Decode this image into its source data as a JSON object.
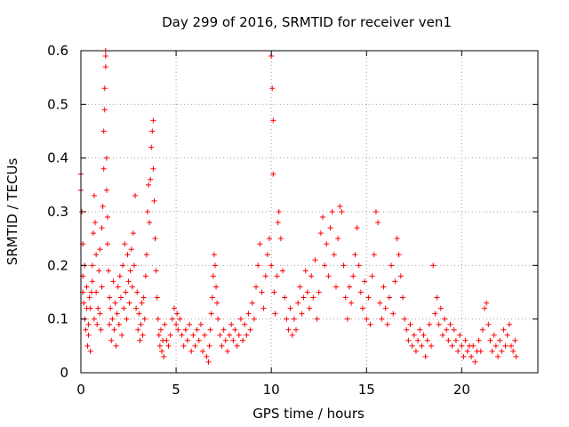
{
  "chart_data": {
    "type": "scatter",
    "title": "Day 299 of 2016, SRMTID for receiver ven1",
    "xlabel": "GPS time / hours",
    "ylabel": "SRMTID / TECUs",
    "xlim": [
      0,
      24
    ],
    "ylim": [
      0,
      0.6
    ],
    "xticks": [
      0,
      5,
      10,
      15,
      20
    ],
    "xtick_labels": [
      "0",
      "5",
      "10",
      "15",
      "20"
    ],
    "yticks": [
      0,
      0.1,
      0.2,
      0.3,
      0.4,
      0.5,
      0.6
    ],
    "ytick_labels": [
      "0",
      "0.1",
      "0.2",
      "0.3",
      "0.4",
      "0.5",
      "0.6"
    ],
    "grid": true,
    "marker": "+",
    "color": "#ff0000",
    "series": [
      {
        "name": "ven1",
        "points": [
          [
            0.0,
            0.34
          ],
          [
            0.0,
            0.37
          ],
          [
            0.05,
            0.3
          ],
          [
            0.1,
            0.24
          ],
          [
            0.1,
            0.18
          ],
          [
            0.1,
            0.15
          ],
          [
            0.15,
            0.13
          ],
          [
            0.2,
            0.2
          ],
          [
            0.2,
            0.1
          ],
          [
            0.25,
            0.08
          ],
          [
            0.3,
            0.16
          ],
          [
            0.3,
            0.12
          ],
          [
            0.35,
            0.05
          ],
          [
            0.4,
            0.09
          ],
          [
            0.4,
            0.07
          ],
          [
            0.45,
            0.14
          ],
          [
            0.5,
            0.12
          ],
          [
            0.5,
            0.04
          ],
          [
            0.55,
            0.15
          ],
          [
            0.6,
            0.17
          ],
          [
            0.6,
            0.2
          ],
          [
            0.65,
            0.26
          ],
          [
            0.7,
            0.33
          ],
          [
            0.7,
            0.1
          ],
          [
            0.75,
            0.28
          ],
          [
            0.8,
            0.22
          ],
          [
            0.8,
            0.15
          ],
          [
            0.85,
            0.09
          ],
          [
            0.9,
            0.12
          ],
          [
            0.95,
            0.19
          ],
          [
            1.0,
            0.11
          ],
          [
            1.0,
            0.23
          ],
          [
            1.05,
            0.08
          ],
          [
            1.1,
            0.16
          ],
          [
            1.1,
            0.27
          ],
          [
            1.15,
            0.31
          ],
          [
            1.2,
            0.38
          ],
          [
            1.2,
            0.45
          ],
          [
            1.25,
            0.49
          ],
          [
            1.25,
            0.53
          ],
          [
            1.3,
            0.57
          ],
          [
            1.3,
            0.6
          ],
          [
            1.3,
            0.59
          ],
          [
            1.35,
            0.4
          ],
          [
            1.35,
            0.34
          ],
          [
            1.4,
            0.29
          ],
          [
            1.4,
            0.24
          ],
          [
            1.45,
            0.19
          ],
          [
            1.5,
            0.14
          ],
          [
            1.5,
            0.09
          ],
          [
            1.55,
            0.12
          ],
          [
            1.6,
            0.06
          ],
          [
            1.65,
            0.1
          ],
          [
            1.7,
            0.17
          ],
          [
            1.75,
            0.08
          ],
          [
            1.8,
            0.13
          ],
          [
            1.85,
            0.05
          ],
          [
            1.9,
            0.11
          ],
          [
            1.95,
            0.16
          ],
          [
            2.0,
            0.09
          ],
          [
            2.05,
            0.18
          ],
          [
            2.1,
            0.14
          ],
          [
            2.15,
            0.07
          ],
          [
            2.2,
            0.2
          ],
          [
            2.25,
            0.12
          ],
          [
            2.3,
            0.24
          ],
          [
            2.35,
            0.15
          ],
          [
            2.4,
            0.1
          ],
          [
            2.45,
            0.22
          ],
          [
            2.5,
            0.17
          ],
          [
            2.55,
            0.13
          ],
          [
            2.6,
            0.19
          ],
          [
            2.65,
            0.23
          ],
          [
            2.7,
            0.16
          ],
          [
            2.75,
            0.26
          ],
          [
            2.8,
            0.2
          ],
          [
            2.85,
            0.33
          ],
          [
            2.9,
            0.12
          ],
          [
            2.95,
            0.15
          ],
          [
            3.0,
            0.08
          ],
          [
            3.05,
            0.11
          ],
          [
            3.1,
            0.06
          ],
          [
            3.15,
            0.09
          ],
          [
            3.2,
            0.13
          ],
          [
            3.25,
            0.07
          ],
          [
            3.3,
            0.14
          ],
          [
            3.35,
            0.1
          ],
          [
            3.4,
            0.18
          ],
          [
            3.45,
            0.22
          ],
          [
            3.5,
            0.3
          ],
          [
            3.55,
            0.35
          ],
          [
            3.6,
            0.28
          ],
          [
            3.65,
            0.36
          ],
          [
            3.7,
            0.42
          ],
          [
            3.75,
            0.45
          ],
          [
            3.8,
            0.47
          ],
          [
            3.8,
            0.38
          ],
          [
            3.85,
            0.32
          ],
          [
            3.9,
            0.25
          ],
          [
            3.95,
            0.19
          ],
          [
            4.0,
            0.14
          ],
          [
            4.05,
            0.1
          ],
          [
            4.1,
            0.07
          ],
          [
            4.15,
            0.05
          ],
          [
            4.2,
            0.08
          ],
          [
            4.25,
            0.04
          ],
          [
            4.3,
            0.06
          ],
          [
            4.35,
            0.03
          ],
          [
            4.4,
            0.09
          ],
          [
            4.5,
            0.06
          ],
          [
            4.6,
            0.05
          ],
          [
            4.7,
            0.07
          ],
          [
            4.8,
            0.1
          ],
          [
            4.9,
            0.12
          ],
          [
            5.0,
            0.09
          ],
          [
            5.05,
            0.11
          ],
          [
            5.1,
            0.08
          ],
          [
            5.2,
            0.1
          ],
          [
            5.3,
            0.07
          ],
          [
            5.4,
            0.05
          ],
          [
            5.5,
            0.08
          ],
          [
            5.6,
            0.06
          ],
          [
            5.7,
            0.09
          ],
          [
            5.8,
            0.04
          ],
          [
            5.9,
            0.07
          ],
          [
            6.0,
            0.05
          ],
          [
            6.1,
            0.08
          ],
          [
            6.2,
            0.06
          ],
          [
            6.3,
            0.09
          ],
          [
            6.4,
            0.04
          ],
          [
            6.5,
            0.07
          ],
          [
            6.6,
            0.03
          ],
          [
            6.7,
            0.02
          ],
          [
            6.75,
            0.05
          ],
          [
            6.8,
            0.08
          ],
          [
            6.85,
            0.11
          ],
          [
            6.9,
            0.14
          ],
          [
            6.95,
            0.18
          ],
          [
            7.0,
            0.22
          ],
          [
            7.05,
            0.2
          ],
          [
            7.1,
            0.16
          ],
          [
            7.15,
            0.13
          ],
          [
            7.2,
            0.1
          ],
          [
            7.3,
            0.07
          ],
          [
            7.4,
            0.05
          ],
          [
            7.5,
            0.08
          ],
          [
            7.6,
            0.06
          ],
          [
            7.7,
            0.04
          ],
          [
            7.8,
            0.07
          ],
          [
            7.9,
            0.09
          ],
          [
            8.0,
            0.06
          ],
          [
            8.1,
            0.08
          ],
          [
            8.2,
            0.05
          ],
          [
            8.3,
            0.07
          ],
          [
            8.4,
            0.1
          ],
          [
            8.5,
            0.06
          ],
          [
            8.6,
            0.09
          ],
          [
            8.7,
            0.07
          ],
          [
            8.8,
            0.11
          ],
          [
            8.9,
            0.08
          ],
          [
            9.0,
            0.13
          ],
          [
            9.1,
            0.1
          ],
          [
            9.2,
            0.16
          ],
          [
            9.3,
            0.2
          ],
          [
            9.4,
            0.24
          ],
          [
            9.5,
            0.15
          ],
          [
            9.6,
            0.12
          ],
          [
            9.7,
            0.18
          ],
          [
            9.8,
            0.22
          ],
          [
            9.9,
            0.25
          ],
          [
            10.0,
            0.2
          ],
          [
            10.0,
            0.59
          ],
          [
            10.05,
            0.53
          ],
          [
            10.1,
            0.47
          ],
          [
            10.1,
            0.37
          ],
          [
            10.15,
            0.15
          ],
          [
            10.2,
            0.11
          ],
          [
            10.3,
            0.18
          ],
          [
            10.35,
            0.28
          ],
          [
            10.4,
            0.3
          ],
          [
            10.5,
            0.25
          ],
          [
            10.6,
            0.19
          ],
          [
            10.7,
            0.14
          ],
          [
            10.8,
            0.1
          ],
          [
            10.9,
            0.08
          ],
          [
            11.0,
            0.12
          ],
          [
            11.1,
            0.07
          ],
          [
            11.2,
            0.1
          ],
          [
            11.3,
            0.08
          ],
          [
            11.4,
            0.13
          ],
          [
            11.5,
            0.16
          ],
          [
            11.6,
            0.11
          ],
          [
            11.7,
            0.14
          ],
          [
            11.8,
            0.19
          ],
          [
            11.9,
            0.15
          ],
          [
            12.0,
            0.12
          ],
          [
            12.1,
            0.18
          ],
          [
            12.2,
            0.14
          ],
          [
            12.3,
            0.21
          ],
          [
            12.4,
            0.1
          ],
          [
            12.5,
            0.15
          ],
          [
            12.6,
            0.26
          ],
          [
            12.7,
            0.29
          ],
          [
            12.8,
            0.2
          ],
          [
            12.9,
            0.24
          ],
          [
            13.0,
            0.18
          ],
          [
            13.1,
            0.27
          ],
          [
            13.2,
            0.3
          ],
          [
            13.3,
            0.22
          ],
          [
            13.4,
            0.16
          ],
          [
            13.5,
            0.25
          ],
          [
            13.6,
            0.31
          ],
          [
            13.7,
            0.3
          ],
          [
            13.8,
            0.2
          ],
          [
            13.9,
            0.14
          ],
          [
            14.0,
            0.1
          ],
          [
            14.1,
            0.16
          ],
          [
            14.2,
            0.13
          ],
          [
            14.3,
            0.18
          ],
          [
            14.4,
            0.22
          ],
          [
            14.5,
            0.27
          ],
          [
            14.6,
            0.2
          ],
          [
            14.7,
            0.15
          ],
          [
            14.8,
            0.12
          ],
          [
            14.9,
            0.17
          ],
          [
            15.0,
            0.1
          ],
          [
            15.1,
            0.14
          ],
          [
            15.2,
            0.09
          ],
          [
            15.3,
            0.18
          ],
          [
            15.4,
            0.22
          ],
          [
            15.5,
            0.3
          ],
          [
            15.6,
            0.28
          ],
          [
            15.7,
            0.13
          ],
          [
            15.8,
            0.1
          ],
          [
            15.9,
            0.16
          ],
          [
            16.0,
            0.12
          ],
          [
            16.1,
            0.09
          ],
          [
            16.2,
            0.14
          ],
          [
            16.3,
            0.2
          ],
          [
            16.4,
            0.11
          ],
          [
            16.5,
            0.17
          ],
          [
            16.6,
            0.25
          ],
          [
            16.7,
            0.22
          ],
          [
            16.8,
            0.18
          ],
          [
            16.9,
            0.14
          ],
          [
            17.0,
            0.1
          ],
          [
            17.1,
            0.08
          ],
          [
            17.2,
            0.06
          ],
          [
            17.3,
            0.09
          ],
          [
            17.4,
            0.05
          ],
          [
            17.5,
            0.07
          ],
          [
            17.6,
            0.04
          ],
          [
            17.7,
            0.06
          ],
          [
            17.8,
            0.08
          ],
          [
            17.9,
            0.05
          ],
          [
            18.0,
            0.07
          ],
          [
            18.1,
            0.03
          ],
          [
            18.2,
            0.06
          ],
          [
            18.3,
            0.09
          ],
          [
            18.4,
            0.05
          ],
          [
            18.5,
            0.2
          ],
          [
            18.6,
            0.11
          ],
          [
            18.7,
            0.14
          ],
          [
            18.8,
            0.09
          ],
          [
            18.9,
            0.12
          ],
          [
            19.0,
            0.07
          ],
          [
            19.1,
            0.1
          ],
          [
            19.2,
            0.08
          ],
          [
            19.3,
            0.06
          ],
          [
            19.4,
            0.09
          ],
          [
            19.5,
            0.05
          ],
          [
            19.6,
            0.08
          ],
          [
            19.7,
            0.06
          ],
          [
            19.8,
            0.04
          ],
          [
            19.9,
            0.07
          ],
          [
            20.0,
            0.05
          ],
          [
            20.1,
            0.03
          ],
          [
            20.2,
            0.06
          ],
          [
            20.3,
            0.04
          ],
          [
            20.4,
            0.05
          ],
          [
            20.5,
            0.03
          ],
          [
            20.6,
            0.05
          ],
          [
            20.7,
            0.02
          ],
          [
            20.8,
            0.04
          ],
          [
            20.9,
            0.06
          ],
          [
            21.0,
            0.04
          ],
          [
            21.1,
            0.08
          ],
          [
            21.2,
            0.12
          ],
          [
            21.3,
            0.13
          ],
          [
            21.4,
            0.09
          ],
          [
            21.5,
            0.06
          ],
          [
            21.6,
            0.04
          ],
          [
            21.7,
            0.07
          ],
          [
            21.8,
            0.05
          ],
          [
            21.9,
            0.03
          ],
          [
            22.0,
            0.06
          ],
          [
            22.1,
            0.04
          ],
          [
            22.2,
            0.08
          ],
          [
            22.3,
            0.05
          ],
          [
            22.4,
            0.07
          ],
          [
            22.5,
            0.09
          ],
          [
            22.6,
            0.05
          ],
          [
            22.7,
            0.04
          ],
          [
            22.8,
            0.06
          ],
          [
            22.85,
            0.03
          ]
        ]
      }
    ]
  }
}
